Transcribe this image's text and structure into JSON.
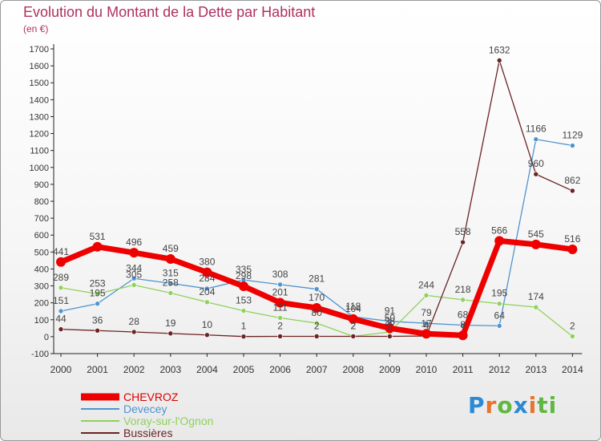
{
  "title": "Evolution du Montant de la Dette par Habitant",
  "subtitle": "(en €)",
  "logo_text": "Proxiti",
  "chart_data": {
    "type": "line",
    "x": [
      "2000",
      "2001",
      "2002",
      "2003",
      "2004",
      "2005",
      "2006",
      "2007",
      "2008",
      "2009",
      "2010",
      "2011",
      "2012",
      "2013",
      "2014"
    ],
    "ylim": [
      -100,
      1700
    ],
    "yticks": [
      -100,
      0,
      100,
      200,
      300,
      400,
      500,
      600,
      700,
      800,
      900,
      1000,
      1100,
      1200,
      1300,
      1400,
      1500,
      1600,
      1700
    ],
    "grid": false,
    "legend_position": "bottom-left",
    "series": [
      {
        "name": "CHEVROZ",
        "color": "#ee0000",
        "values": [
          441,
          531,
          496,
          459,
          380,
          298,
          201,
          170,
          104,
          50,
          17,
          8,
          566,
          545,
          516
        ],
        "labels": [
          "441",
          "531",
          "496",
          "459",
          "380",
          "298",
          "201",
          "170",
          "104",
          "50",
          "17",
          "8",
          "566",
          "545",
          "516"
        ]
      },
      {
        "name": "Devecey",
        "color": "#4f94cf",
        "values": [
          151,
          195,
          344,
          315,
          284,
          335,
          308,
          281,
          118,
          91,
          79,
          68,
          64,
          1166,
          1129
        ],
        "labels": [
          "151",
          "195",
          "344",
          "315",
          "284",
          "335",
          "308",
          "281",
          "118",
          "91",
          "79",
          "68",
          "64",
          "1166",
          "1129"
        ]
      },
      {
        "name": "Voray-sur-l'Ognon",
        "color": "#8fd25a",
        "values": [
          289,
          253,
          305,
          258,
          204,
          153,
          111,
          80,
          2,
          28,
          244,
          218,
          195,
          174,
          2
        ],
        "labels": [
          "289",
          "253",
          "305",
          "258",
          "204",
          "153",
          "111",
          "80",
          "2",
          "28",
          "244",
          "218",
          "195",
          "174",
          "2"
        ]
      },
      {
        "name": "Bussières",
        "color": "#6b2323",
        "values": [
          44,
          36,
          28,
          19,
          10,
          1,
          2,
          2,
          2,
          2,
          4,
          558,
          1632,
          960,
          862
        ],
        "labels": [
          "44",
          "36",
          "28",
          "19",
          "10",
          "1",
          "2",
          "2",
          "2",
          "2",
          "4",
          "558",
          "1632",
          "960",
          "862"
        ]
      }
    ]
  }
}
